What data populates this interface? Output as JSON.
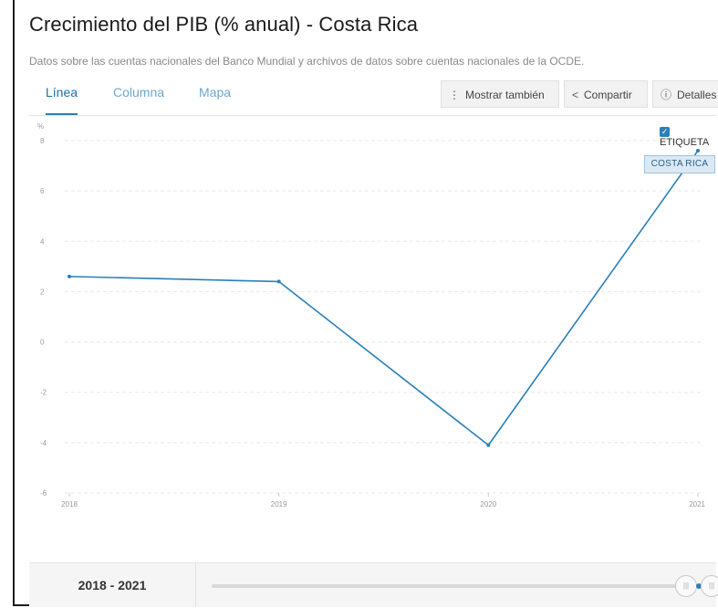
{
  "header": {
    "title": "Crecimiento del PIB (% anual) - Costa Rica",
    "source": "Datos sobre las cuentas nacionales del Banco Mundial y archivos de datos sobre cuentas nacionales de la OCDE."
  },
  "tabs": [
    {
      "label": "Línea",
      "active": true
    },
    {
      "label": "Columna",
      "active": false
    },
    {
      "label": "Mapa",
      "active": false
    }
  ],
  "toolbar": {
    "show_also": "Mostrar también",
    "share": "Compartir",
    "details": "Detalles"
  },
  "legend": {
    "checkbox_label": "ETIQUETA",
    "checked": true,
    "series_tag": "COSTA RICA"
  },
  "footer": {
    "range_label": "2018 - 2021"
  },
  "colors": {
    "line": "#2a7fb8",
    "accent": "#1d6fa5"
  },
  "chart_data": {
    "type": "line",
    "title": "Crecimiento del PIB (% anual) - Costa Rica",
    "ylabel": "%",
    "xlabel": "",
    "x": [
      "2018",
      "2019",
      "2020",
      "2021"
    ],
    "series": [
      {
        "name": "COSTA RICA",
        "values": [
          2.6,
          2.4,
          -4.1,
          7.6
        ]
      }
    ],
    "ylim": [
      -6,
      8
    ],
    "yticks": [
      -6,
      -4,
      -2,
      0,
      2,
      4,
      6,
      8
    ],
    "grid": true,
    "legend_position": "top-right"
  }
}
